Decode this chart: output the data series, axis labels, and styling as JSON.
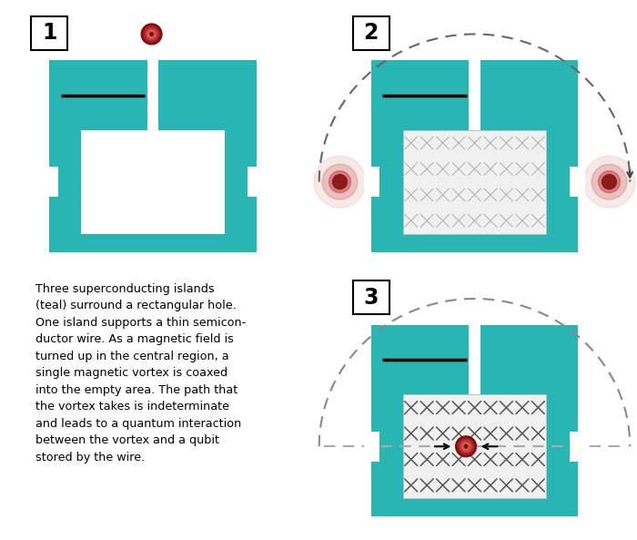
{
  "teal": "#2ab5b5",
  "white": "#ffffff",
  "red_dark": "#8b1a1a",
  "red_mid": "#c03030",
  "background": "#ffffff",
  "gray_dash": "#777777",
  "description_lines": [
    "Three superconducting islands",
    "(teal) surround a rectangular hole.",
    "One island supports a thin semicon-",
    "ductor wire. As a magnetic field is",
    "turned up in the central region, a",
    "single magnetic vortex is coaxed",
    "into the empty area. The path that",
    "the vortex takes is indeterminate",
    "and leads to a quantum interaction",
    "between the vortex and a qubit",
    "stored by the wire."
  ]
}
